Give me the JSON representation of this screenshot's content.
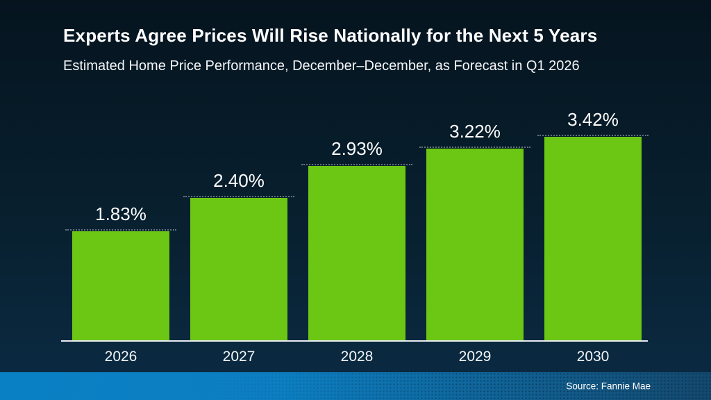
{
  "slide": {
    "title": "Experts Agree Prices Will Rise Nationally for the Next 5 Years",
    "subtitle": "Estimated Home Price Performance, December–December, as Forecast in Q1 2026",
    "source": "Source: Fannie Mae"
  },
  "colors": {
    "background_top": "#05141f",
    "background_bottom": "#0b2b44",
    "bar_green": "#6cc614",
    "axis_line": "#e6ecf0",
    "text": "#ffffff",
    "footer_blue_left": "#0a80c4",
    "footer_blue_right": "#14486d"
  },
  "chart_data": {
    "type": "bar",
    "title": "Experts Agree Prices Will Rise Nationally for the Next 5 Years",
    "subtitle": "Estimated Home Price Performance, December–December, as Forecast in Q1 2026",
    "categories": [
      "2026",
      "2027",
      "2028",
      "2029",
      "2030"
    ],
    "values": [
      1.83,
      2.4,
      2.93,
      3.22,
      3.42
    ],
    "value_labels": [
      "1.83%",
      "2.40%",
      "2.93%",
      "3.22%",
      "3.42%"
    ],
    "unit": "%",
    "xlabel": "",
    "ylabel": "",
    "ylim": [
      0,
      4
    ],
    "grid": false,
    "legend": false,
    "bar_color": "#6cc614",
    "source": "Source: Fannie Mae"
  }
}
